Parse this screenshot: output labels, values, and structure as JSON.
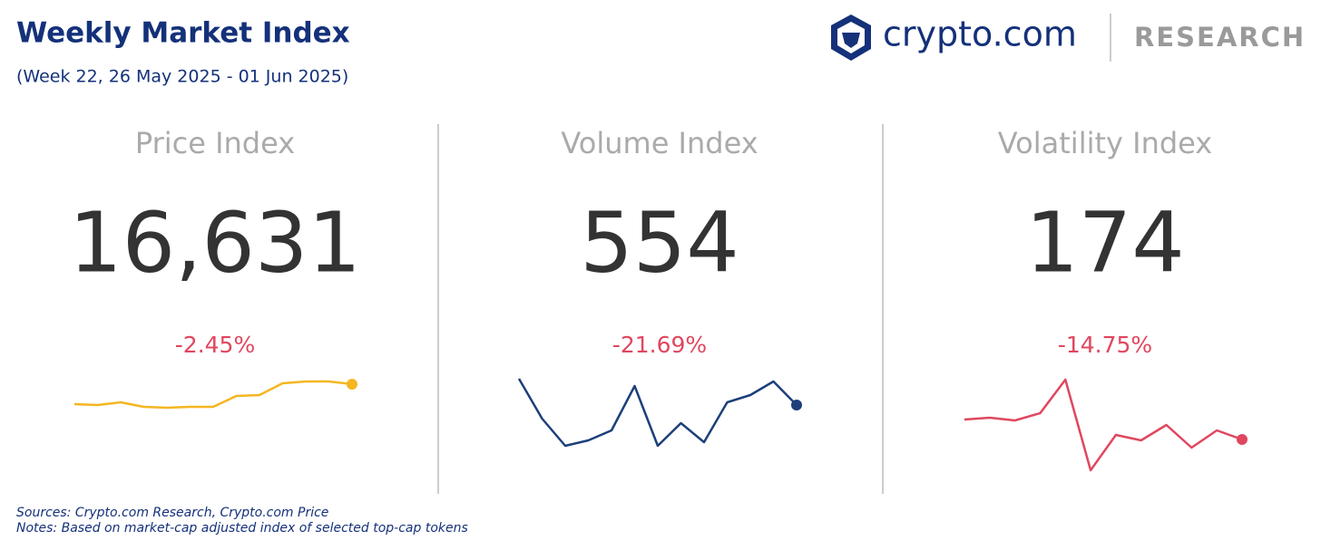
{
  "header": {
    "title": "Weekly Market Index",
    "subtitle": "(Week 22, 26 May 2025 - 01 Jun 2025)",
    "brand": "crypto.com",
    "brand_section": "RESEARCH"
  },
  "chart_data": [
    {
      "type": "line",
      "title": "Price Index",
      "headline": "16,631",
      "change": "-2.45%",
      "color": "#f4b621",
      "values": [
        84,
        83,
        86,
        81,
        80,
        81,
        81,
        93,
        94,
        107,
        109,
        109,
        106
      ]
    },
    {
      "type": "line",
      "title": "Volume Index",
      "headline": "554",
      "change": "-21.69%",
      "color": "#1d3f7a",
      "values": [
        112,
        68,
        38,
        44,
        55,
        104,
        38,
        63,
        42,
        86,
        94,
        109,
        83
      ]
    },
    {
      "type": "line",
      "title": "Volatility Index",
      "headline": "174",
      "change": "-14.75%",
      "color": "#e0475f",
      "values": [
        67,
        69,
        66,
        74,
        111,
        11,
        50,
        44,
        61,
        36,
        55,
        45
      ]
    }
  ],
  "footer": {
    "sources": "Sources: Crypto.com Research,  Crypto.com Price",
    "notes": "Notes: Based on market-cap adjusted index of selected top-cap tokens"
  }
}
